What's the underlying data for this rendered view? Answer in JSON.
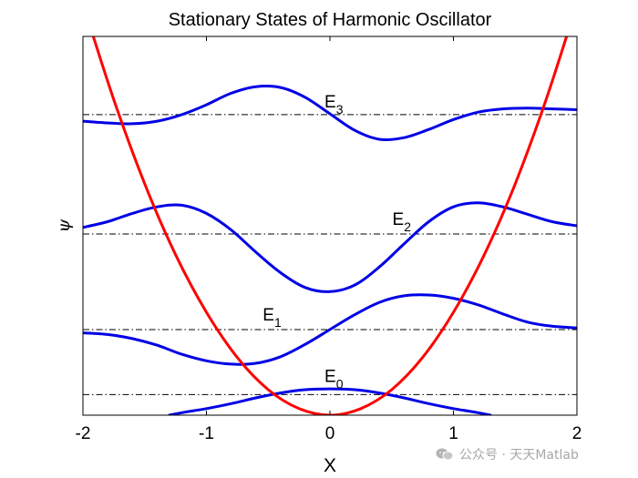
{
  "chart_data": {
    "type": "line",
    "title": "Stationary States of Harmonic Oscillator",
    "xlabel": "X",
    "ylabel": "ψ",
    "xlim": [
      -2,
      2
    ],
    "ylim": [
      0,
      4.6
    ],
    "xticks": [
      "-2",
      "-1",
      "0",
      "1",
      "2"
    ],
    "grid": false,
    "colors": {
      "potential": "#ff0000",
      "wavefunction": "#0000e6",
      "level_line": "#000000"
    },
    "potential": {
      "x": [
        -2,
        -1.75,
        -1.5,
        -1.25,
        -1,
        -0.75,
        -0.5,
        -0.25,
        0,
        0.25,
        0.5,
        0.75,
        1,
        1.25,
        1.5,
        1.75,
        2
      ],
      "y": [
        5.0,
        3.83,
        2.81,
        1.95,
        1.25,
        0.7,
        0.31,
        0.08,
        0,
        0.08,
        0.31,
        0.7,
        1.25,
        1.95,
        2.81,
        3.83,
        5.0
      ]
    },
    "levels": [
      {
        "label": "E",
        "subscript": "0",
        "energy": 0.25,
        "x": [
          -1.3,
          -1.2,
          -1.0,
          -0.8,
          -0.6,
          -0.4,
          -0.2,
          0,
          0.2,
          0.4,
          0.6,
          0.8,
          1.0,
          1.2,
          1.3
        ],
        "y": [
          0.0,
          0.03,
          0.08,
          0.14,
          0.21,
          0.27,
          0.31,
          0.32,
          0.31,
          0.27,
          0.21,
          0.14,
          0.08,
          0.03,
          0.0
        ]
      },
      {
        "label": "E",
        "subscript": "1",
        "energy": 1.04,
        "x": [
          -2,
          -1.8,
          -1.6,
          -1.4,
          -1.2,
          -1.0,
          -0.8,
          -0.6,
          -0.4,
          -0.2,
          0,
          0.2,
          0.4,
          0.6,
          0.8,
          1.0,
          1.2,
          1.4,
          1.6,
          1.8,
          2.0
        ],
        "y": [
          1.0,
          0.98,
          0.93,
          0.85,
          0.74,
          0.66,
          0.62,
          0.63,
          0.71,
          0.86,
          1.04,
          1.22,
          1.37,
          1.45,
          1.46,
          1.42,
          1.34,
          1.23,
          1.13,
          1.08,
          1.06
        ]
      },
      {
        "label": "E",
        "subscript": "2",
        "energy": 2.2,
        "x": [
          -2,
          -1.8,
          -1.6,
          -1.4,
          -1.2,
          -1.0,
          -0.8,
          -0.6,
          -0.4,
          -0.2,
          0,
          0.2,
          0.4,
          0.6,
          0.8,
          1.0,
          1.2,
          1.4,
          1.6,
          1.8,
          2.0
        ],
        "y": [
          2.28,
          2.35,
          2.45,
          2.53,
          2.55,
          2.45,
          2.25,
          1.98,
          1.73,
          1.55,
          1.5,
          1.58,
          1.8,
          2.08,
          2.35,
          2.53,
          2.58,
          2.53,
          2.44,
          2.35,
          2.3
        ]
      },
      {
        "label": "E",
        "subscript": "3",
        "energy": 3.65,
        "x": [
          -2,
          -1.8,
          -1.6,
          -1.4,
          -1.2,
          -1.0,
          -0.8,
          -0.6,
          -0.4,
          -0.2,
          0,
          0.2,
          0.4,
          0.6,
          0.8,
          1.0,
          1.2,
          1.4,
          1.6,
          1.8,
          2.0
        ],
        "y": [
          3.57,
          3.55,
          3.54,
          3.57,
          3.65,
          3.77,
          3.91,
          3.99,
          3.98,
          3.86,
          3.66,
          3.46,
          3.35,
          3.37,
          3.47,
          3.59,
          3.68,
          3.72,
          3.73,
          3.72,
          3.71
        ]
      }
    ]
  },
  "watermark": {
    "text": "公众号 · 天天Matlab"
  }
}
